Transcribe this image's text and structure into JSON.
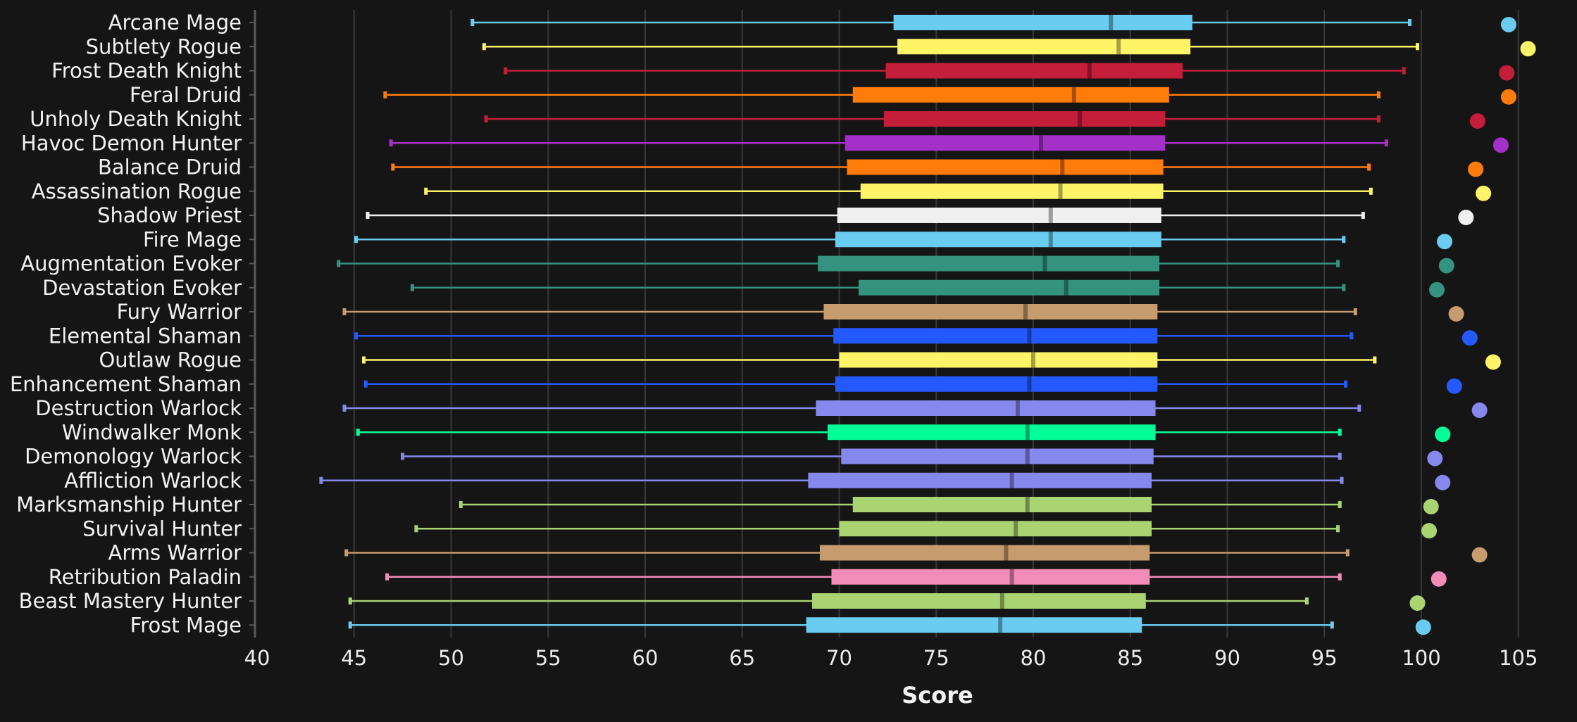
{
  "chart_data": {
    "type": "box",
    "xlabel": "Score",
    "xlim": [
      40,
      106
    ],
    "x_ticks": [
      40,
      45,
      50,
      55,
      60,
      65,
      70,
      75,
      80,
      85,
      90,
      95,
      100,
      105
    ],
    "grid": true,
    "series": [
      {
        "name": "Arcane Mage",
        "color": "#69ccf0",
        "min": 51.1,
        "q1": 72.8,
        "median": 84.0,
        "q3": 88.2,
        "max": 99.4,
        "max_marker": 104.5
      },
      {
        "name": "Subtlety Rogue",
        "color": "#fff468",
        "min": 51.7,
        "q1": 73.0,
        "median": 84.4,
        "q3": 88.1,
        "max": 99.8,
        "max_marker": 105.5
      },
      {
        "name": "Frost Death Knight",
        "color": "#c41e3a",
        "min": 52.8,
        "q1": 72.4,
        "median": 82.9,
        "q3": 87.7,
        "max": 99.1,
        "max_marker": 104.4
      },
      {
        "name": "Feral Druid",
        "color": "#ff7c0a",
        "min": 46.6,
        "q1": 70.7,
        "median": 82.1,
        "q3": 87.0,
        "max": 97.8,
        "max_marker": 104.5
      },
      {
        "name": "Unholy Death Knight",
        "color": "#c41e3a",
        "min": 51.8,
        "q1": 72.3,
        "median": 82.4,
        "q3": 86.8,
        "max": 97.8,
        "max_marker": 102.9
      },
      {
        "name": "Havoc Demon Hunter",
        "color": "#a330c9",
        "min": 46.9,
        "q1": 70.3,
        "median": 80.4,
        "q3": 86.8,
        "max": 98.2,
        "max_marker": 104.1
      },
      {
        "name": "Balance Druid",
        "color": "#ff7c0a",
        "min": 47.0,
        "q1": 70.4,
        "median": 81.5,
        "q3": 86.7,
        "max": 97.3,
        "max_marker": 102.8
      },
      {
        "name": "Assassination Rogue",
        "color": "#fff468",
        "min": 48.7,
        "q1": 71.1,
        "median": 81.4,
        "q3": 86.7,
        "max": 97.4,
        "max_marker": 103.2
      },
      {
        "name": "Shadow Priest",
        "color": "#f0f0f0",
        "min": 45.7,
        "q1": 69.9,
        "median": 80.9,
        "q3": 86.6,
        "max": 97.0,
        "max_marker": 102.3
      },
      {
        "name": "Fire Mage",
        "color": "#69ccf0",
        "min": 45.1,
        "q1": 69.8,
        "median": 80.9,
        "q3": 86.6,
        "max": 96.0,
        "max_marker": 101.2
      },
      {
        "name": "Augmentation Evoker",
        "color": "#33937f",
        "min": 44.2,
        "q1": 68.9,
        "median": 80.6,
        "q3": 86.5,
        "max": 95.7,
        "max_marker": 101.3
      },
      {
        "name": "Devastation Evoker",
        "color": "#33937f",
        "min": 48.0,
        "q1": 71.0,
        "median": 81.7,
        "q3": 86.5,
        "max": 96.0,
        "max_marker": 100.8
      },
      {
        "name": "Fury Warrior",
        "color": "#c69b6d",
        "min": 44.5,
        "q1": 69.2,
        "median": 79.6,
        "q3": 86.4,
        "max": 96.6,
        "max_marker": 101.8
      },
      {
        "name": "Elemental Shaman",
        "color": "#2459ff",
        "min": 45.1,
        "q1": 69.7,
        "median": 79.8,
        "q3": 86.4,
        "max": 96.4,
        "max_marker": 102.5
      },
      {
        "name": "Outlaw Rogue",
        "color": "#fff468",
        "min": 45.5,
        "q1": 70.0,
        "median": 80.0,
        "q3": 86.4,
        "max": 97.6,
        "max_marker": 103.7
      },
      {
        "name": "Enhancement Shaman",
        "color": "#2459ff",
        "min": 45.6,
        "q1": 69.8,
        "median": 79.8,
        "q3": 86.4,
        "max": 96.1,
        "max_marker": 101.7
      },
      {
        "name": "Destruction Warlock",
        "color": "#8788ee",
        "min": 44.5,
        "q1": 68.8,
        "median": 79.2,
        "q3": 86.3,
        "max": 96.8,
        "max_marker": 103.0
      },
      {
        "name": "Windwalker Monk",
        "color": "#00ff98",
        "min": 45.2,
        "q1": 69.4,
        "median": 79.7,
        "q3": 86.3,
        "max": 95.8,
        "max_marker": 101.1
      },
      {
        "name": "Demonology Warlock",
        "color": "#8788ee",
        "min": 47.5,
        "q1": 70.1,
        "median": 79.7,
        "q3": 86.2,
        "max": 95.8,
        "max_marker": 100.7
      },
      {
        "name": "Affliction Warlock",
        "color": "#8788ee",
        "min": 43.3,
        "q1": 68.4,
        "median": 78.9,
        "q3": 86.1,
        "max": 95.9,
        "max_marker": 101.1
      },
      {
        "name": "Marksmanship Hunter",
        "color": "#aad372",
        "min": 50.5,
        "q1": 70.7,
        "median": 79.7,
        "q3": 86.1,
        "max": 95.8,
        "max_marker": 100.5
      },
      {
        "name": "Survival Hunter",
        "color": "#aad372",
        "min": 48.2,
        "q1": 70.0,
        "median": 79.1,
        "q3": 86.1,
        "max": 95.7,
        "max_marker": 100.4
      },
      {
        "name": "Arms Warrior",
        "color": "#c69b6d",
        "min": 44.6,
        "q1": 69.0,
        "median": 78.6,
        "q3": 86.0,
        "max": 96.2,
        "max_marker": 103.0
      },
      {
        "name": "Retribution Paladin",
        "color": "#f48cba",
        "min": 46.7,
        "q1": 69.6,
        "median": 78.9,
        "q3": 86.0,
        "max": 95.8,
        "max_marker": 100.9
      },
      {
        "name": "Beast Mastery Hunter",
        "color": "#aad372",
        "min": 44.8,
        "q1": 68.6,
        "median": 78.4,
        "q3": 85.8,
        "max": 94.1,
        "max_marker": 99.8
      },
      {
        "name": "Frost Mage",
        "color": "#69ccf0",
        "min": 44.8,
        "q1": 68.3,
        "median": 78.3,
        "q3": 85.6,
        "max": 95.4,
        "max_marker": 100.1
      }
    ]
  }
}
